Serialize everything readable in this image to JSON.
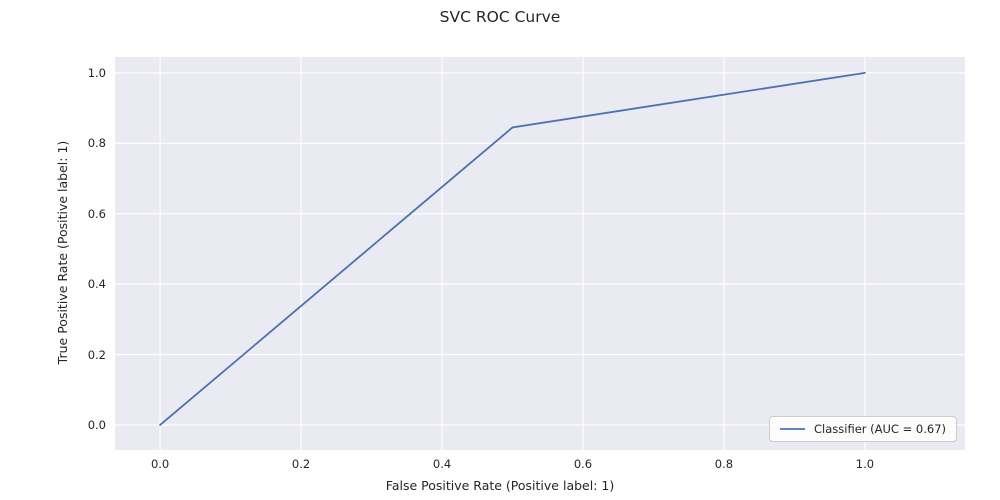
{
  "chart_data": {
    "type": "line",
    "title": "SVC ROC Curve",
    "xlabel": "False Positive Rate (Positive label: 1)",
    "ylabel": "True Positive Rate (Positive label: 1)",
    "series": [
      {
        "name": "Classifier (AUC = 0.67)",
        "x": [
          0.0,
          0.5,
          1.0
        ],
        "y": [
          0.0,
          0.845,
          1.0
        ],
        "color": "#4c72b0"
      }
    ],
    "auc": 0.67,
    "xticks": [
      0.0,
      0.2,
      0.4,
      0.6,
      0.8,
      1.0
    ],
    "yticks": [
      0.0,
      0.2,
      0.4,
      0.6,
      0.8,
      1.0
    ],
    "xtick_labels": [
      "0.0",
      "0.2",
      "0.4",
      "0.6",
      "0.8",
      "1.0"
    ],
    "ytick_labels": [
      "0.0",
      "0.2",
      "0.4",
      "0.6",
      "0.8",
      "1.0"
    ],
    "xlim": [
      -0.064,
      1.142
    ],
    "ylim": [
      -0.071,
      1.045
    ],
    "grid": true,
    "legend_position": "lower right",
    "plot_bg": "#eaeaf2",
    "grid_color": "#ffffff",
    "text_color": "#262626"
  }
}
